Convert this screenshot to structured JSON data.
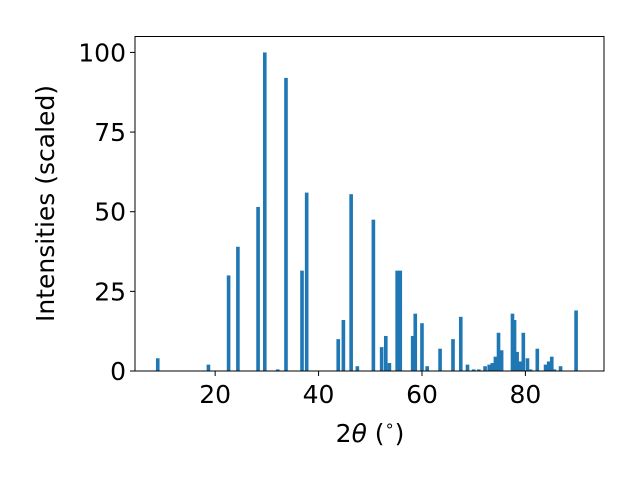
{
  "chart_data": {
    "type": "bar",
    "xlabel_parts": [
      "2",
      "θ",
      " (",
      "∘",
      ")"
    ],
    "ylabel": "Intensities (scaled)",
    "xlim": [
      4.5,
      95.2
    ],
    "ylim": [
      0,
      105
    ],
    "xticks": [
      20,
      40,
      60,
      80
    ],
    "yticks": [
      0,
      25,
      50,
      75,
      100
    ],
    "bar_width": 0.7,
    "bar_color": "#1f77b4",
    "grid": false,
    "x": [
      8.9,
      18.7,
      22.6,
      24.4,
      28.3,
      29.6,
      32.1,
      33.7,
      36.8,
      37.7,
      43.8,
      44.8,
      46.3,
      47.5,
      50.6,
      52.2,
      53.0,
      53.7,
      55.2,
      55.8,
      58.2,
      58.7,
      60.0,
      61.0,
      63.5,
      66.0,
      67.5,
      68.8,
      70.0,
      71.0,
      72.2,
      73.0,
      73.6,
      74.2,
      74.8,
      75.4,
      77.5,
      77.9,
      78.4,
      79.0,
      79.6,
      80.4,
      81.0,
      82.3,
      83.9,
      84.5,
      85.1,
      85.6,
      86.8,
      89.8
    ],
    "y": [
      4,
      2,
      30,
      39,
      51.5,
      100,
      0.5,
      92,
      31.5,
      56,
      10,
      16,
      55.5,
      1.5,
      47.5,
      7.5,
      11,
      2.5,
      31.5,
      31.5,
      11,
      18,
      15,
      1.5,
      7,
      10,
      17,
      2,
      0.5,
      0.5,
      1.5,
      2,
      2.5,
      4.5,
      12,
      6.5,
      18,
      16,
      6,
      3,
      12,
      4,
      0.5,
      7,
      2,
      3,
      4.5,
      0.5,
      1.5,
      19
    ]
  }
}
